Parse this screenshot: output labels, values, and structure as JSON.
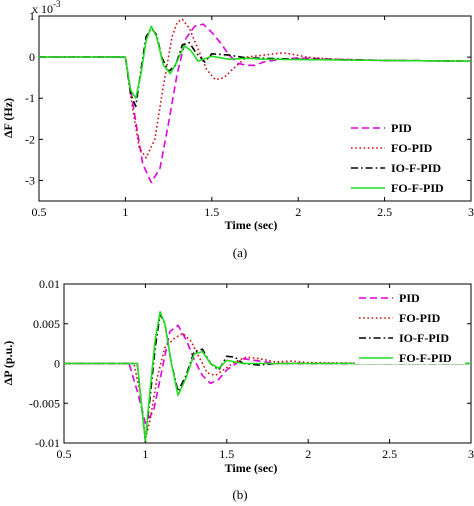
{
  "colors": {
    "pid": "#e000e0",
    "fo_pid": "#d01010",
    "io_f_pid": "#000000",
    "fo_f_pid": "#22dd22",
    "axis": "#000000",
    "background": "#ffffff"
  },
  "chart_data": [
    {
      "type": "line",
      "caption": "(a)",
      "xlabel": "Time (sec)",
      "ylabel": "ΔF (Hz)",
      "multiplier_label": "x 10",
      "multiplier_exponent": "-3",
      "xlim": [
        0.5,
        3
      ],
      "ylim": [
        -3.5,
        1
      ],
      "x_ticks": [
        "0.5",
        "1",
        "1.5",
        "2",
        "2.5",
        "3"
      ],
      "y_ticks": [
        "1",
        "0",
        "-1",
        "-2",
        "-3"
      ],
      "legend_position": "bottom-right",
      "grid": false,
      "series": [
        {
          "name": "PID",
          "style": "dashed",
          "color": "#e000e0",
          "x": [
            0.5,
            1.0,
            1.05,
            1.1,
            1.15,
            1.2,
            1.25,
            1.3,
            1.35,
            1.4,
            1.45,
            1.5,
            1.55,
            1.6,
            1.65,
            1.7,
            1.75,
            1.8,
            1.9,
            2.0,
            2.2,
            2.5,
            3.0
          ],
          "y": [
            0,
            0,
            -1.3,
            -2.6,
            -3.05,
            -2.7,
            -1.6,
            -0.4,
            0.45,
            0.75,
            0.8,
            0.6,
            0.35,
            0.05,
            -0.15,
            -0.2,
            -0.2,
            -0.12,
            -0.05,
            -0.02,
            -0.05,
            -0.08,
            -0.1
          ]
        },
        {
          "name": "FO-PID",
          "style": "dotted",
          "color": "#d01010",
          "x": [
            0.5,
            1.0,
            1.04,
            1.08,
            1.12,
            1.17,
            1.22,
            1.27,
            1.3,
            1.33,
            1.37,
            1.42,
            1.47,
            1.52,
            1.57,
            1.62,
            1.7,
            1.8,
            1.9,
            1.95,
            2.05,
            2.2,
            2.5,
            3.0
          ],
          "y": [
            0,
            0,
            -1.2,
            -2.2,
            -2.45,
            -2.0,
            -0.7,
            0.5,
            0.85,
            0.92,
            0.7,
            0.2,
            -0.3,
            -0.55,
            -0.5,
            -0.3,
            0.0,
            0.05,
            0.1,
            0.08,
            0.0,
            -0.05,
            -0.08,
            -0.1
          ]
        },
        {
          "name": "IO-F-PID",
          "style": "dashdot",
          "color": "#000000",
          "x": [
            0.5,
            1.0,
            1.03,
            1.06,
            1.09,
            1.12,
            1.15,
            1.18,
            1.21,
            1.25,
            1.29,
            1.33,
            1.37,
            1.41,
            1.46,
            1.5,
            1.6,
            1.7,
            1.8,
            2.0,
            2.5,
            3.0
          ],
          "y": [
            0,
            0,
            -0.9,
            -1.2,
            -0.3,
            0.5,
            0.7,
            0.55,
            0.0,
            -0.35,
            -0.2,
            0.3,
            0.35,
            0.1,
            -0.12,
            0.08,
            0.05,
            -0.02,
            -0.03,
            -0.05,
            -0.08,
            -0.1
          ]
        },
        {
          "name": "FO-F-PID",
          "style": "solid",
          "color": "#22dd22",
          "x": [
            0.5,
            1.0,
            1.03,
            1.06,
            1.09,
            1.12,
            1.15,
            1.18,
            1.22,
            1.26,
            1.3,
            1.34,
            1.38,
            1.42,
            1.5,
            1.6,
            1.7,
            1.8,
            2.0,
            2.5,
            3.0
          ],
          "y": [
            0,
            0,
            -0.8,
            -1.0,
            -0.4,
            0.4,
            0.75,
            0.5,
            -0.2,
            -0.4,
            -0.1,
            0.28,
            0.15,
            -0.1,
            0.02,
            -0.05,
            -0.03,
            -0.05,
            -0.06,
            -0.08,
            -0.1
          ]
        }
      ]
    },
    {
      "type": "line",
      "caption": "(b)",
      "xlabel": "Time (sec)",
      "ylabel": "ΔP (p.u.)",
      "xlim": [
        0.5,
        3
      ],
      "ylim": [
        -0.01,
        0.01
      ],
      "x_ticks": [
        "0.5",
        "1",
        "1.5",
        "2",
        "2.5",
        "3"
      ],
      "y_ticks": [
        "0.01",
        "0.005",
        "0",
        "-0.005",
        "-0.01"
      ],
      "legend_position": "top-right",
      "grid": false,
      "series": [
        {
          "name": "PID",
          "style": "dashed",
          "color": "#e000e0",
          "x": [
            0.5,
            0.9,
            0.95,
            1.0,
            1.05,
            1.1,
            1.15,
            1.2,
            1.25,
            1.3,
            1.35,
            1.4,
            1.45,
            1.5,
            1.6,
            1.7,
            1.8,
            2.0,
            2.5,
            3.0
          ],
          "y": [
            0,
            0,
            -0.0035,
            -0.0075,
            -0.006,
            -0.001,
            0.004,
            0.0048,
            0.003,
            0.0005,
            -0.0015,
            -0.0025,
            -0.002,
            -0.0008,
            0.0006,
            0.0003,
            0.0,
            0.0,
            0.0,
            0.0
          ]
        },
        {
          "name": "FO-PID",
          "style": "dotted",
          "color": "#d01010",
          "x": [
            0.5,
            0.93,
            0.97,
            1.0,
            1.03,
            1.07,
            1.12,
            1.18,
            1.23,
            1.28,
            1.33,
            1.38,
            1.43,
            1.48,
            1.55,
            1.62,
            1.7,
            1.8,
            1.9,
            2.0,
            2.5,
            3.0
          ],
          "y": [
            0,
            0,
            -0.004,
            -0.0095,
            -0.007,
            -0.002,
            0.002,
            0.0032,
            0.0038,
            0.0028,
            0.0008,
            -0.0012,
            -0.0015,
            -0.0008,
            0.0002,
            0.0008,
            0.0006,
            0.0002,
            0.0003,
            0.0001,
            0.0,
            0.0
          ]
        },
        {
          "name": "IO-F-PID",
          "style": "dashdot",
          "color": "#000000",
          "x": [
            0.5,
            0.95,
            0.98,
            1.0,
            1.03,
            1.06,
            1.09,
            1.12,
            1.16,
            1.2,
            1.25,
            1.3,
            1.35,
            1.4,
            1.45,
            1.5,
            1.55,
            1.6,
            1.7,
            1.8,
            2.0,
            3.0
          ],
          "y": [
            0,
            0,
            -0.006,
            -0.0098,
            -0.004,
            0.002,
            0.0062,
            0.005,
            0.0,
            -0.0035,
            -0.0015,
            0.0015,
            0.0018,
            0.0,
            -0.0008,
            0.0009,
            0.0008,
            0.0,
            -0.0002,
            0.0,
            0.0,
            0.0
          ]
        },
        {
          "name": "FO-F-PID",
          "style": "solid",
          "color": "#22dd22",
          "x": [
            0.5,
            0.95,
            0.98,
            1.0,
            1.03,
            1.06,
            1.09,
            1.12,
            1.16,
            1.2,
            1.25,
            1.3,
            1.35,
            1.4,
            1.45,
            1.5,
            1.6,
            1.7,
            1.8,
            2.0,
            3.0
          ],
          "y": [
            0,
            0,
            -0.006,
            -0.0097,
            -0.003,
            0.003,
            0.0065,
            0.005,
            0.0,
            -0.004,
            -0.0018,
            0.0012,
            0.0015,
            0.0,
            -0.0006,
            0.0004,
            0.0,
            0.0,
            0.0,
            0.0,
            0.0
          ]
        }
      ]
    }
  ]
}
